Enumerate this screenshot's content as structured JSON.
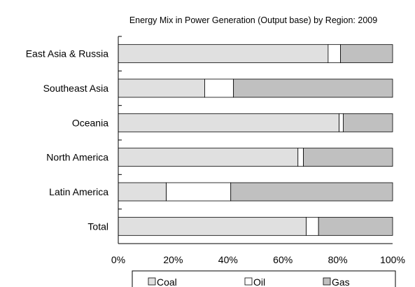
{
  "chart_data": {
    "type": "bar",
    "orientation": "horizontal",
    "stacked": "percent",
    "title": "Energy Mix in Power Generation (Output base) by Region: 2009",
    "categories": [
      "East Asia & Russia",
      "Southeast Asia",
      "Oceania",
      "North America",
      "Latin America",
      "Total"
    ],
    "series": [
      {
        "name": "Coal",
        "color": "#e0e0e0",
        "values": [
          76.5,
          31.5,
          80.5,
          65.5,
          17.5,
          68.5
        ]
      },
      {
        "name": "Oil",
        "color": "#ffffff",
        "values": [
          4.5,
          10.5,
          1.5,
          2.0,
          23.5,
          4.5
        ]
      },
      {
        "name": "Gas",
        "color": "#c0c0c0",
        "values": [
          19.0,
          58.0,
          18.0,
          32.5,
          59.0,
          27.0
        ]
      }
    ],
    "xlim": [
      0,
      100
    ],
    "xticks": [
      "0%",
      "20%",
      "40%",
      "60%",
      "80%",
      "100%"
    ],
    "xlabel": "",
    "ylabel": "",
    "grid": false,
    "legend": "bottom"
  }
}
